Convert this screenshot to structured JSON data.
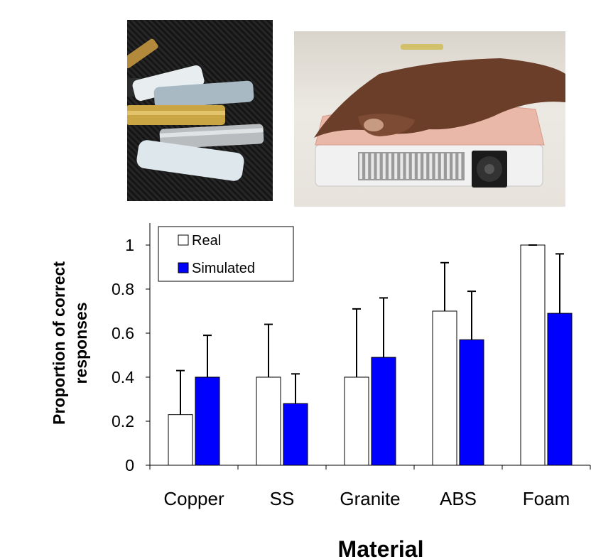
{
  "figure": {
    "photos": [
      {
        "subject": "material-sample-rods"
      },
      {
        "subject": "hand-on-thermal-display"
      }
    ]
  },
  "chart_data": {
    "type": "bar",
    "categories": [
      "Copper",
      "SS",
      "Granite",
      "ABS",
      "Foam"
    ],
    "series": [
      {
        "name": "Real",
        "color": "#ffffff",
        "values": [
          0.23,
          0.4,
          0.4,
          0.7,
          1.0
        ],
        "errors": [
          0.2,
          0.24,
          0.31,
          0.22,
          0.0
        ]
      },
      {
        "name": "Simulated",
        "color": "#0000ff",
        "values": [
          0.4,
          0.28,
          0.49,
          0.57,
          0.69
        ],
        "errors": [
          0.19,
          0.135,
          0.27,
          0.22,
          0.27
        ]
      }
    ],
    "xlabel": "Material",
    "ylabel_lines": [
      "Proportion of correct",
      "responses"
    ],
    "ylim": [
      0,
      1.1
    ],
    "yticks": [
      0,
      0.2,
      0.4,
      0.6,
      0.8,
      1
    ],
    "ytick_labels": [
      "0",
      "0.2",
      "0.4",
      "0.6",
      "0.8",
      "1"
    ],
    "legend_position": "top-left",
    "grid": false
  }
}
